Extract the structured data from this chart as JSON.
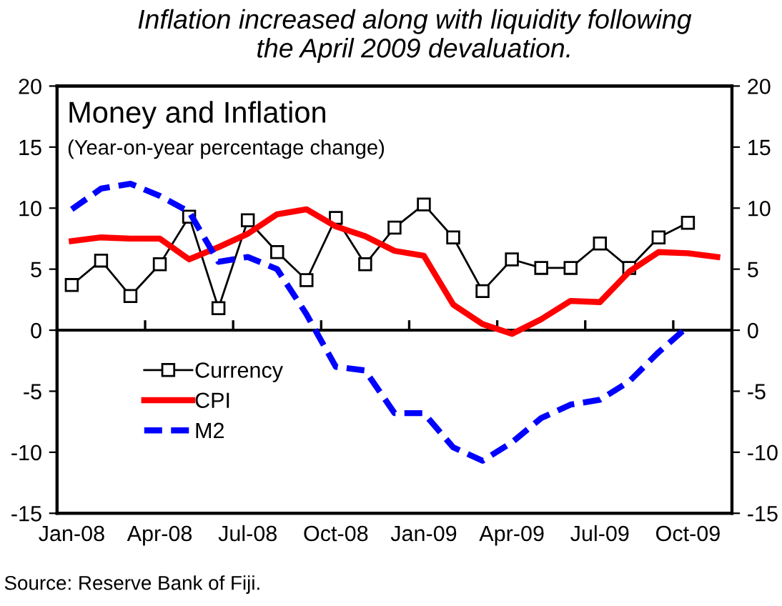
{
  "chart_data": {
    "type": "line",
    "title": "Inflation increased along with liquidity following\nthe April 2009 devaluation.",
    "annotations": [
      "Money and Inflation",
      "(Year-on-year percentage change)",
      "Source: Reserve Bank of Fiji."
    ],
    "categories": [
      "Jan-08",
      null,
      null,
      "Apr-08",
      null,
      null,
      "Jul-08",
      null,
      null,
      "Oct-08",
      null,
      null,
      "Jan-09",
      null,
      null,
      "Apr-09",
      null,
      null,
      "Jul-09",
      null,
      null,
      "Oct-09",
      null
    ],
    "series": [
      {
        "name": "Currency",
        "color": "#000000",
        "marker": "square",
        "line_style": "solid",
        "values": [
          3.7,
          5.7,
          2.8,
          5.4,
          9.3,
          1.8,
          9.0,
          6.4,
          4.1,
          9.2,
          5.4,
          8.4,
          10.3,
          7.6,
          3.2,
          5.8,
          5.1,
          5.1,
          7.1,
          5.1,
          7.6,
          8.8,
          null
        ]
      },
      {
        "name": "CPI",
        "color": "#ff0000",
        "marker": "none",
        "line_style": "solid",
        "values": [
          7.3,
          7.6,
          7.5,
          7.5,
          5.8,
          6.8,
          7.9,
          9.5,
          9.9,
          8.5,
          7.7,
          6.5,
          6.1,
          2.1,
          0.5,
          -0.3,
          0.9,
          2.4,
          2.3,
          4.8,
          6.4,
          6.3,
          6.0
        ]
      },
      {
        "name": "M2",
        "color": "#0000ff",
        "marker": "none",
        "line_style": "dashed",
        "values": [
          9.9,
          11.6,
          12.0,
          11.0,
          9.7,
          5.6,
          6.0,
          5.0,
          1.3,
          -3.0,
          -3.3,
          -6.8,
          -6.8,
          -9.6,
          -10.7,
          -9.2,
          -7.2,
          -6.1,
          -5.7,
          -4.2,
          -1.8,
          0.3,
          null
        ]
      }
    ],
    "ylim": [
      -15,
      20
    ],
    "yticks": [
      -15,
      -10,
      -5,
      0,
      5,
      10,
      15,
      20
    ],
    "y2lim": [
      -15,
      20
    ],
    "y2ticks": [
      -15,
      -10,
      -5,
      0,
      5,
      10,
      15,
      20
    ],
    "legend": "left"
  }
}
